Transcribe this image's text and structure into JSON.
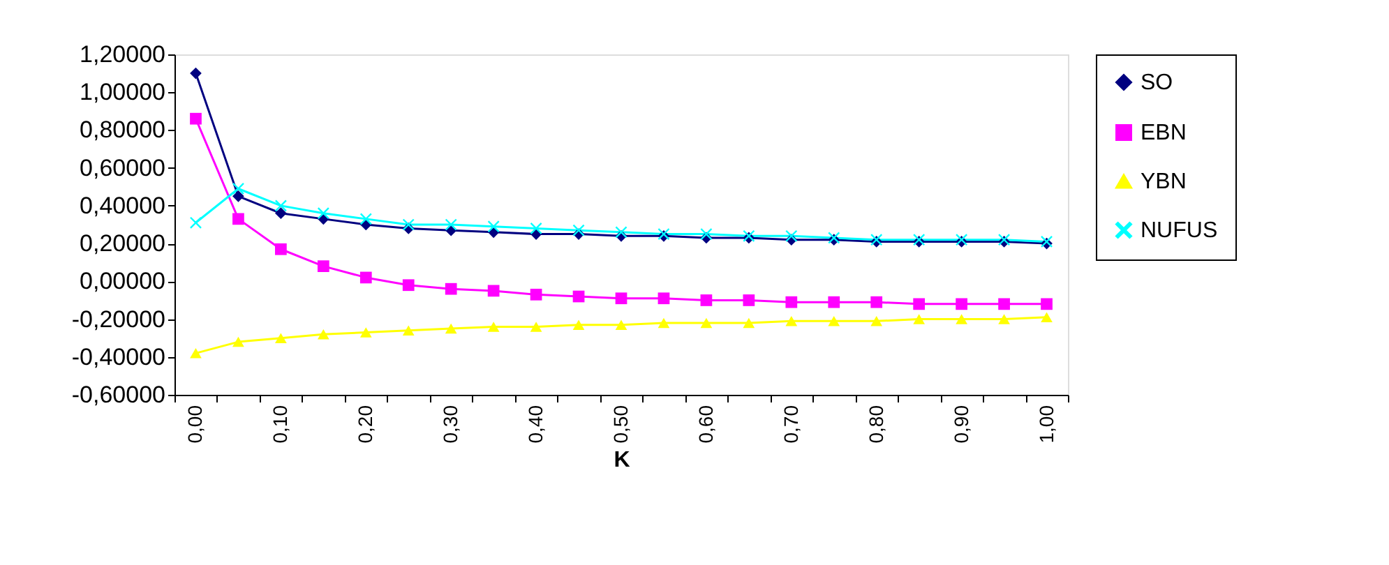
{
  "chart_data": {
    "type": "line",
    "xlabel": "K",
    "categories": [
      "0,00",
      null,
      "0,10",
      null,
      "0,20",
      null,
      "0,30",
      null,
      "0,40",
      null,
      "0,50",
      null,
      "0,60",
      null,
      "0,70",
      null,
      "0,80",
      null,
      "0,90",
      null,
      "1,00"
    ],
    "series": [
      {
        "name": "SO",
        "color": "#000080",
        "marker": "diamond",
        "values": [
          1.1,
          0.45,
          0.36,
          0.33,
          0.3,
          0.28,
          0.27,
          0.26,
          0.25,
          0.25,
          0.24,
          0.24,
          0.23,
          0.23,
          0.22,
          0.22,
          0.21,
          0.21,
          0.21,
          0.21,
          0.2
        ]
      },
      {
        "name": "EBN",
        "color": "#ff00ff",
        "marker": "square",
        "values": [
          0.86,
          0.33,
          0.17,
          0.08,
          0.02,
          -0.02,
          -0.04,
          -0.05,
          -0.07,
          -0.08,
          -0.09,
          -0.09,
          -0.1,
          -0.1,
          -0.11,
          -0.11,
          -0.11,
          -0.12,
          -0.12,
          -0.12,
          -0.12
        ]
      },
      {
        "name": "YBN",
        "color": "#ffff00",
        "marker": "triangle",
        "values": [
          -0.38,
          -0.32,
          -0.3,
          -0.28,
          -0.27,
          -0.26,
          -0.25,
          -0.24,
          -0.24,
          -0.23,
          -0.23,
          -0.22,
          -0.22,
          -0.22,
          -0.21,
          -0.21,
          -0.21,
          -0.2,
          -0.2,
          -0.2,
          -0.19
        ]
      },
      {
        "name": "NUFUS",
        "color": "#00ffff",
        "marker": "cross",
        "values": [
          0.31,
          0.49,
          0.4,
          0.36,
          0.33,
          0.3,
          0.3,
          0.29,
          0.28,
          0.27,
          0.26,
          0.25,
          0.25,
          0.24,
          0.24,
          0.23,
          0.22,
          0.22,
          0.22,
          0.22,
          0.21
        ]
      }
    ],
    "ylim": [
      -0.6,
      1.2
    ],
    "yticks": [
      {
        "value": -0.6,
        "label": "-0,60000"
      },
      {
        "value": -0.4,
        "label": "-0,40000"
      },
      {
        "value": -0.2,
        "label": "-0,20000"
      },
      {
        "value": 0,
        "label": "0,00000"
      },
      {
        "value": 0.2,
        "label": "0,20000"
      },
      {
        "value": 0.4,
        "label": "0,40000"
      },
      {
        "value": 0.6,
        "label": "0,60000"
      },
      {
        "value": 0.8,
        "label": "0,80000"
      },
      {
        "value": 1.0,
        "label": "1,00000"
      },
      {
        "value": 1.2,
        "label": "1,20000"
      }
    ],
    "grid": false,
    "legend": "right",
    "line_style": "solid"
  }
}
